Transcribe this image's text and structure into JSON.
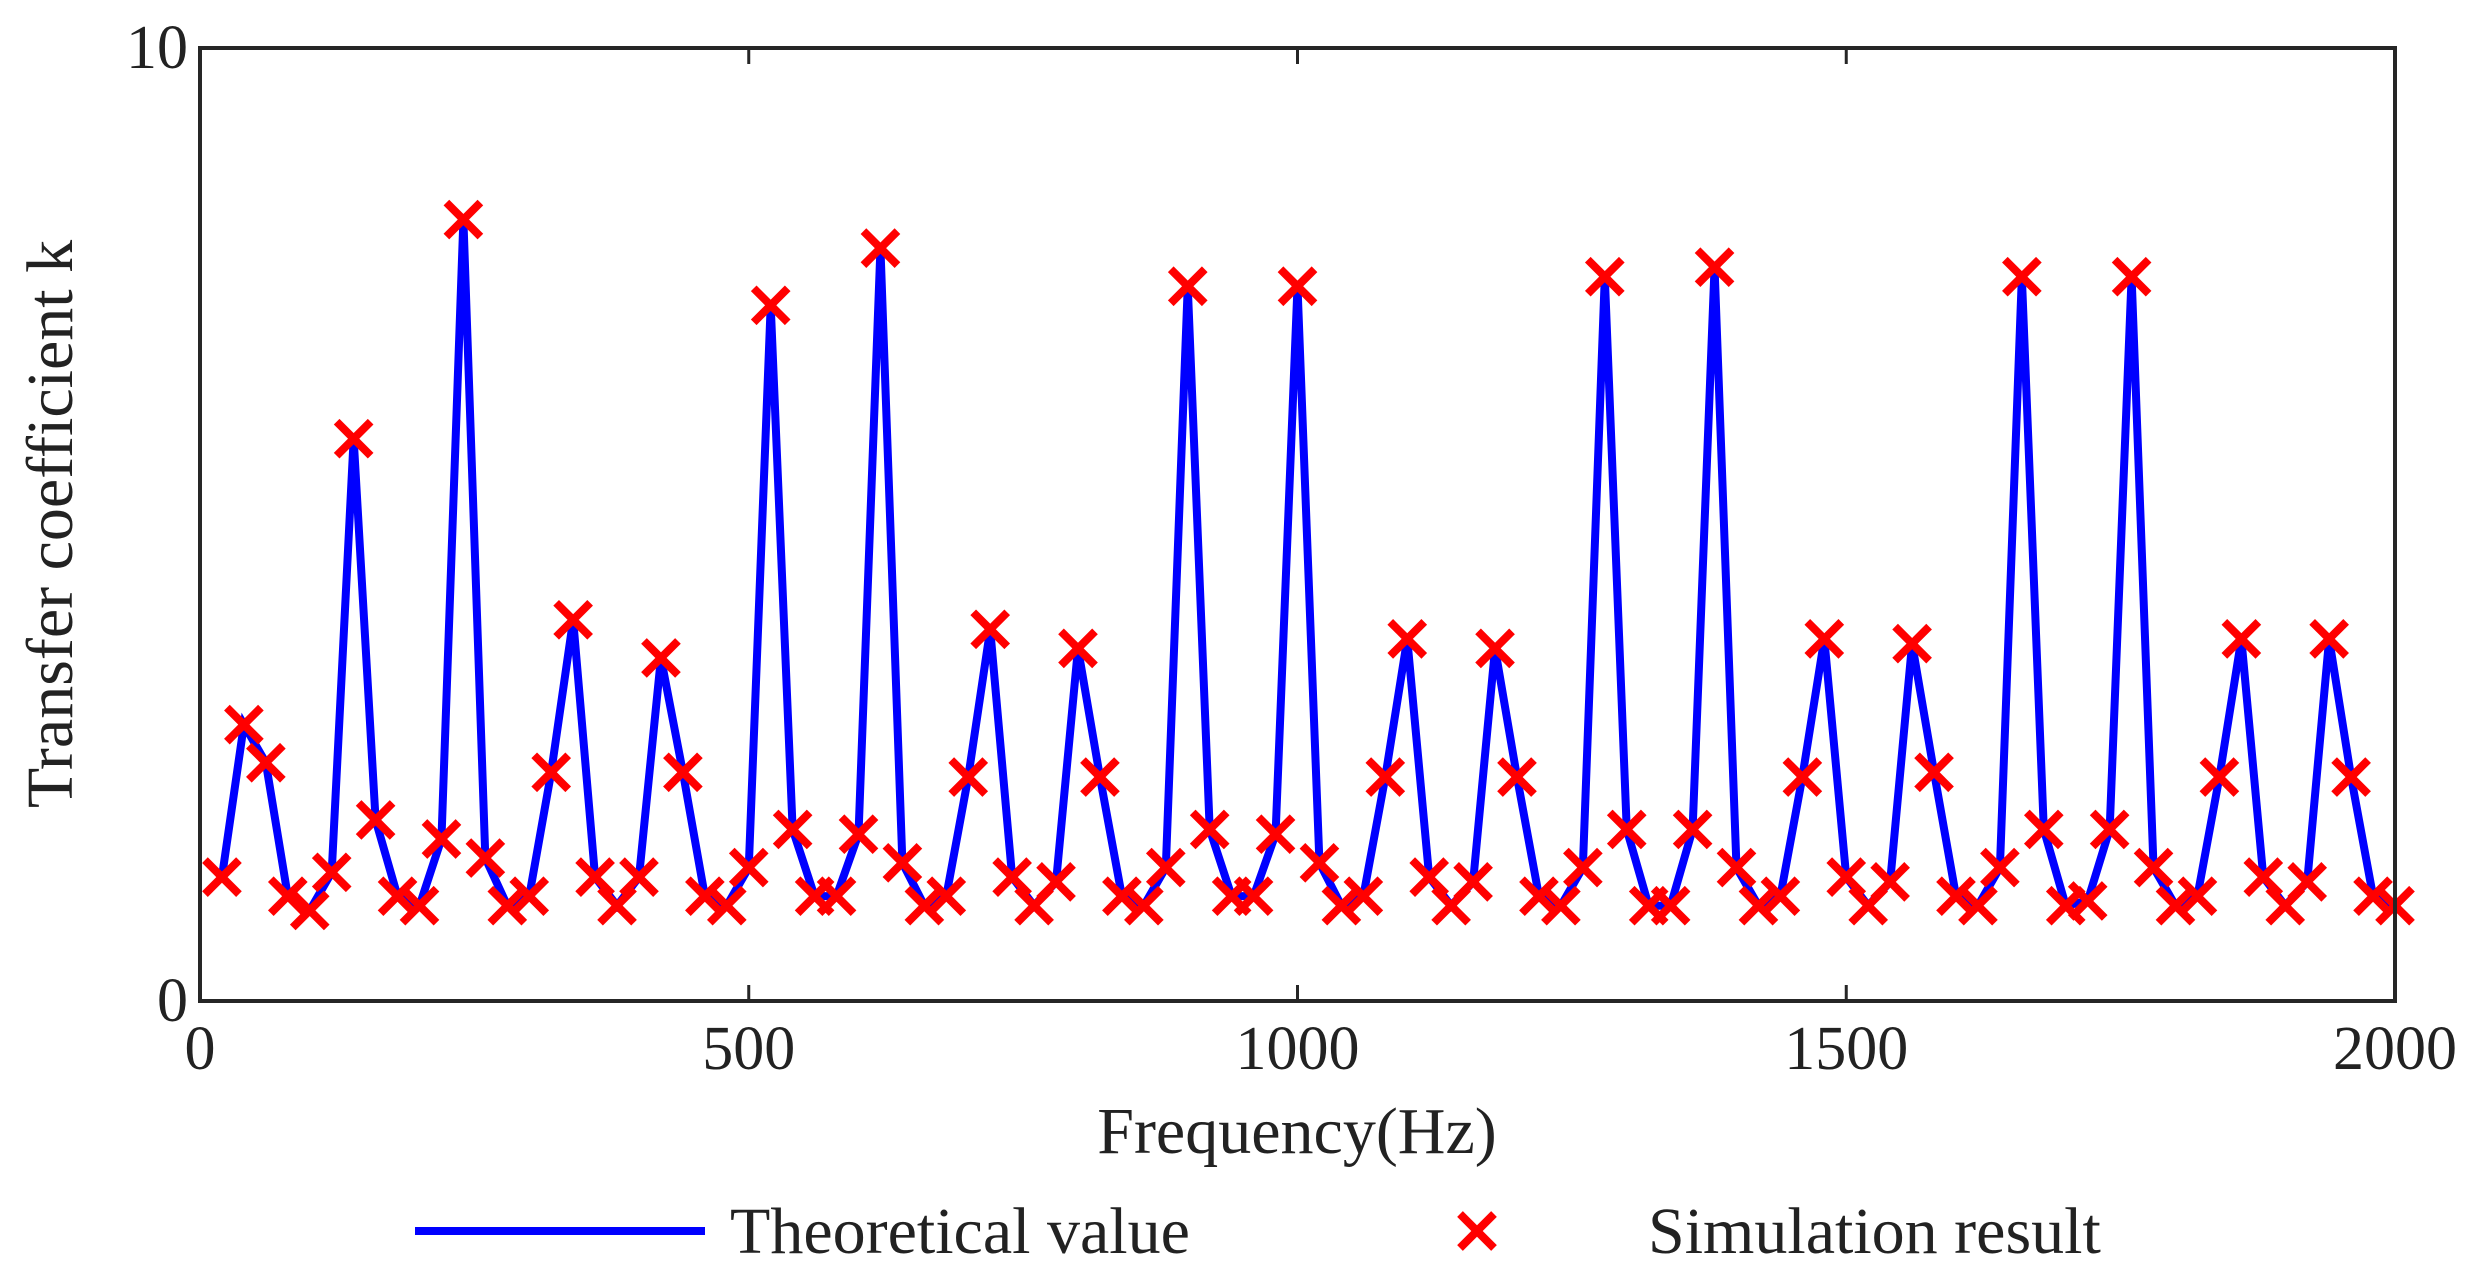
{
  "chart_data": {
    "type": "line",
    "title": "",
    "xlabel": "Frequency(Hz)",
    "ylabel": "Transfer coefficient k",
    "xlim": [
      0,
      2000
    ],
    "ylim": [
      0,
      10
    ],
    "xticks": [
      0,
      500,
      1000,
      1500,
      2000
    ],
    "xtick_labels": [
      "0",
      "500",
      "1000",
      "1500",
      "2000"
    ],
    "yticks": [
      0,
      10
    ],
    "ytick_labels": [
      "0",
      "10"
    ],
    "grid": false,
    "legend_position": "bottom",
    "colors": {
      "theoretical": "#0000ff",
      "simulation": "#ff0000"
    },
    "series": [
      {
        "name": "Theoretical value",
        "style": "line",
        "x": [
          20,
          40,
          60,
          80,
          100,
          120,
          140,
          160,
          180,
          200,
          220,
          240,
          260,
          280,
          300,
          320,
          340,
          360,
          380,
          400,
          420,
          440,
          460,
          480,
          500,
          520,
          540,
          560,
          580,
          600,
          620,
          640,
          660,
          680,
          700,
          720,
          740,
          760,
          780,
          800,
          820,
          840,
          860,
          880,
          900,
          920,
          940,
          960,
          980,
          1000,
          1020,
          1040,
          1060,
          1080,
          1100,
          1120,
          1140,
          1160,
          1180,
          1200,
          1220,
          1240,
          1260,
          1280,
          1300,
          1320,
          1340,
          1360,
          1380,
          1400,
          1420,
          1440,
          1460,
          1480,
          1500,
          1520,
          1540,
          1560,
          1580,
          1600,
          1620,
          1640,
          1660,
          1680,
          1700,
          1720,
          1740,
          1760,
          1780,
          1800,
          1820,
          1840,
          1860,
          1880,
          1900,
          1920,
          1940,
          1960,
          1980,
          2000
        ],
        "values": [
          1.3,
          2.9,
          2.5,
          1.1,
          0.95,
          1.35,
          5.9,
          1.9,
          1.1,
          1.0,
          1.7,
          8.2,
          1.5,
          1.0,
          1.1,
          2.4,
          4.0,
          1.3,
          1.0,
          1.3,
          3.6,
          2.4,
          1.1,
          1.0,
          1.4,
          7.3,
          1.8,
          1.1,
          1.1,
          1.75,
          7.9,
          1.45,
          1.0,
          1.1,
          2.35,
          3.9,
          1.3,
          1.0,
          1.25,
          3.7,
          2.35,
          1.1,
          1.0,
          1.4,
          7.5,
          1.8,
          1.1,
          1.1,
          1.75,
          7.5,
          1.45,
          1.0,
          1.1,
          2.35,
          3.8,
          1.3,
          1.0,
          1.25,
          3.7,
          2.35,
          1.1,
          1.0,
          1.4,
          7.6,
          1.8,
          1.0,
          1.0,
          1.8,
          7.7,
          1.4,
          1.0,
          1.1,
          2.35,
          3.8,
          1.3,
          1.0,
          1.25,
          3.75,
          2.4,
          1.1,
          1.0,
          1.4,
          7.6,
          1.8,
          1.0,
          1.05,
          1.8,
          7.6,
          1.4,
          1.0,
          1.1,
          2.35,
          3.8,
          1.3,
          1.0,
          1.25,
          3.8,
          2.35,
          1.1,
          1.0
        ]
      },
      {
        "name": "Simulation result",
        "style": "marker-x",
        "x": [
          20,
          40,
          60,
          80,
          100,
          120,
          140,
          160,
          180,
          200,
          220,
          240,
          260,
          280,
          300,
          320,
          340,
          360,
          380,
          400,
          420,
          440,
          460,
          480,
          500,
          520,
          540,
          560,
          580,
          600,
          620,
          640,
          660,
          680,
          700,
          720,
          740,
          760,
          780,
          800,
          820,
          840,
          860,
          880,
          900,
          920,
          940,
          960,
          980,
          1000,
          1020,
          1040,
          1060,
          1080,
          1100,
          1120,
          1140,
          1160,
          1180,
          1200,
          1220,
          1240,
          1260,
          1280,
          1300,
          1320,
          1340,
          1360,
          1380,
          1400,
          1420,
          1440,
          1460,
          1480,
          1500,
          1520,
          1540,
          1560,
          1580,
          1600,
          1620,
          1640,
          1660,
          1680,
          1700,
          1720,
          1740,
          1760,
          1780,
          1800,
          1820,
          1840,
          1860,
          1880,
          1900,
          1920,
          1940,
          1960,
          1980,
          2000
        ],
        "values": [
          1.3,
          2.9,
          2.5,
          1.1,
          0.95,
          1.35,
          5.9,
          1.9,
          1.1,
          1.0,
          1.7,
          8.2,
          1.5,
          1.0,
          1.1,
          2.4,
          4.0,
          1.3,
          1.0,
          1.3,
          3.6,
          2.4,
          1.1,
          1.0,
          1.4,
          7.3,
          1.8,
          1.1,
          1.1,
          1.75,
          7.9,
          1.45,
          1.0,
          1.1,
          2.35,
          3.9,
          1.3,
          1.0,
          1.25,
          3.7,
          2.35,
          1.1,
          1.0,
          1.4,
          7.5,
          1.8,
          1.1,
          1.1,
          1.75,
          7.5,
          1.45,
          1.0,
          1.1,
          2.35,
          3.8,
          1.3,
          1.0,
          1.25,
          3.7,
          2.35,
          1.1,
          1.0,
          1.4,
          7.6,
          1.8,
          1.0,
          1.0,
          1.8,
          7.7,
          1.4,
          1.0,
          1.1,
          2.35,
          3.8,
          1.3,
          1.0,
          1.25,
          3.75,
          2.4,
          1.1,
          1.0,
          1.4,
          7.6,
          1.8,
          1.0,
          1.05,
          1.8,
          7.6,
          1.4,
          1.0,
          1.1,
          2.35,
          3.8,
          1.3,
          1.0,
          1.25,
          3.8,
          2.35,
          1.1,
          1.0
        ]
      }
    ]
  }
}
